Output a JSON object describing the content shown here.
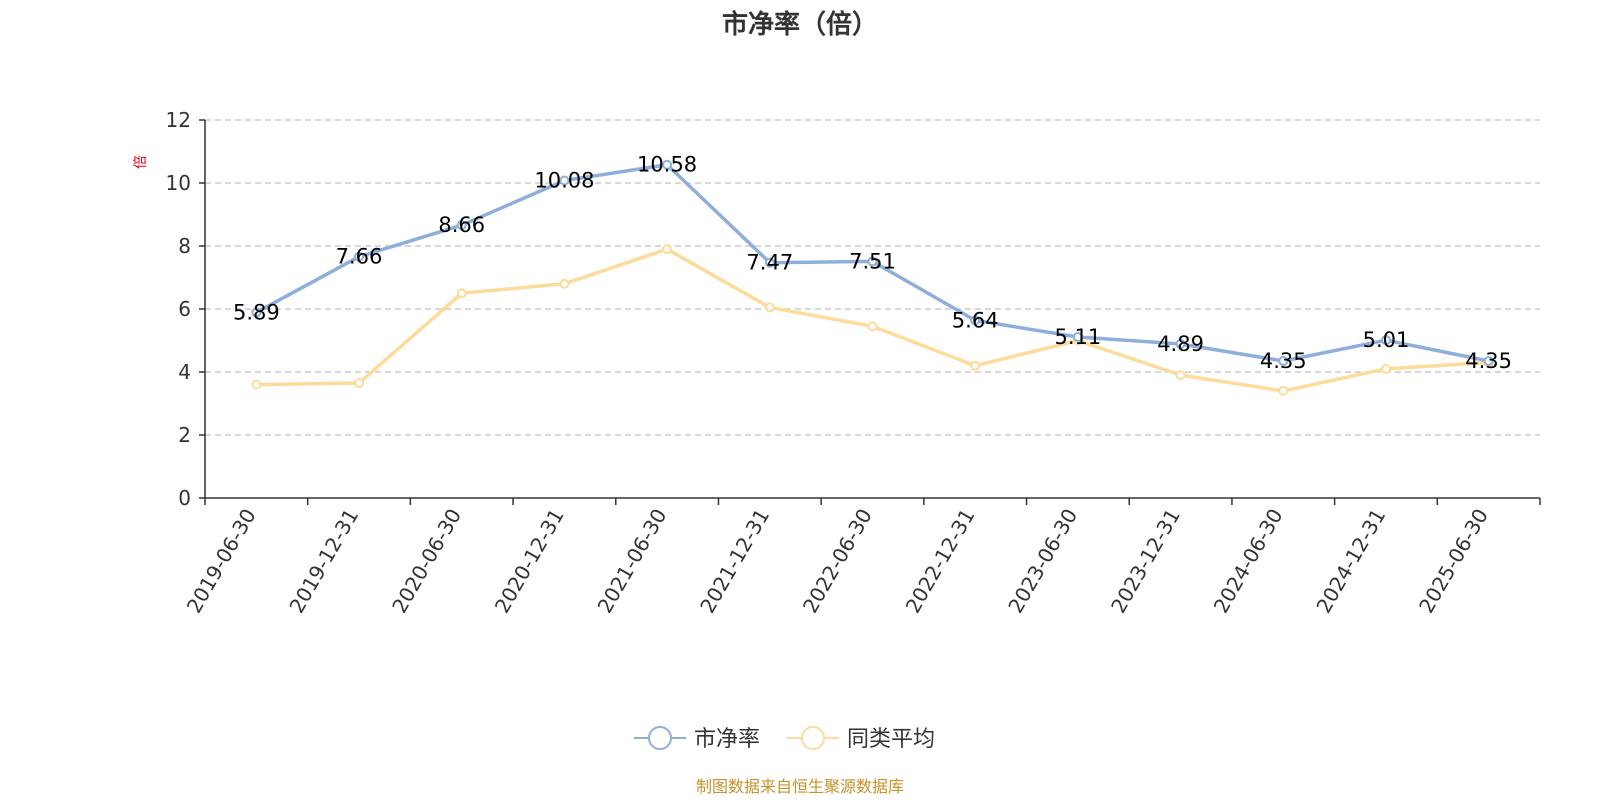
{
  "chart_data": {
    "type": "line",
    "title": "市净率（倍）",
    "ylabel": "倍",
    "ylim": [
      0,
      12
    ],
    "yticks": [
      0,
      2,
      4,
      6,
      8,
      10,
      12
    ],
    "grid": true,
    "legend_position": "bottom",
    "categories": [
      "2019-06-30",
      "2019-12-31",
      "2020-06-30",
      "2020-12-31",
      "2021-06-30",
      "2021-12-31",
      "2022-06-30",
      "2022-12-31",
      "2023-06-30",
      "2023-12-31",
      "2024-06-30",
      "2024-12-31",
      "2025-06-30"
    ],
    "series": [
      {
        "name": "市净率",
        "color": "#8eaedb",
        "values": [
          5.89,
          7.66,
          8.66,
          10.08,
          10.58,
          7.47,
          7.51,
          5.64,
          5.11,
          4.89,
          4.35,
          5.01,
          4.35
        ],
        "labels": [
          "5.89",
          "7.66",
          "8.66",
          "10.08",
          "10.58",
          "7.47",
          "7.51",
          "5.64",
          "5.11",
          "4.89",
          "4.35",
          "5.01",
          "4.35"
        ]
      },
      {
        "name": "同类平均",
        "color": "#fddb9a",
        "values": [
          3.6,
          3.65,
          6.5,
          6.8,
          7.9,
          6.05,
          5.45,
          4.2,
          5.0,
          3.9,
          3.4,
          4.1,
          4.3
        ]
      }
    ],
    "source": "制图数据来自恒生聚源数据库"
  }
}
